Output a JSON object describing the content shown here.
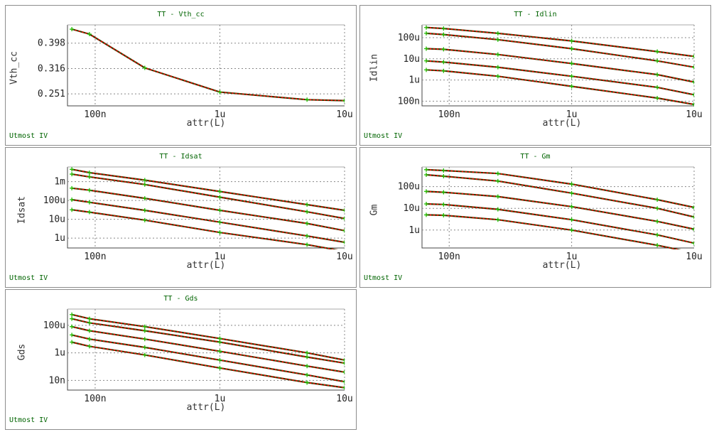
{
  "footer_label": "Utmost IV",
  "charts": [
    {
      "title": "TT - Vth_cc",
      "xlabel": "attr(L)",
      "ylabel": "Vth_cc",
      "chart_data": {
        "type": "line",
        "xscale": "log",
        "yscale": "log",
        "xlim": [
          6e-08,
          1e-05
        ],
        "ylim": [
          0.225,
          0.47
        ],
        "xticks": [
          "100n",
          "1u",
          "10u"
        ],
        "yticks": [
          "0.398",
          "0.316",
          "0.251"
        ],
        "grid": true,
        "series": [
          {
            "x": [
              6.5e-08,
              9e-08,
              2.5e-07,
              1e-06,
              5e-06,
              1e-05
            ],
            "y": [
              0.452,
              0.432,
              0.318,
              0.255,
              0.238,
              0.236
            ]
          }
        ]
      }
    },
    {
      "title": "TT - Idlin",
      "xlabel": "attr(L)",
      "ylabel": "Idlin",
      "chart_data": {
        "type": "line",
        "xscale": "log",
        "yscale": "log",
        "xlim": [
          6e-08,
          1e-05
        ],
        "ylim": [
          6e-08,
          0.0004
        ],
        "xticks": [
          "100n",
          "1u",
          "10u"
        ],
        "yticks": [
          "100u",
          "10u",
          "1u",
          "100n"
        ],
        "grid": true,
        "series": [
          {
            "x": [
              6.5e-08,
              9e-08,
              2.5e-07,
              1e-06,
              5e-06,
              1e-05
            ],
            "y": [
              0.0003,
              0.00027,
              0.00016,
              7e-05,
              2.2e-05,
              1.3e-05
            ]
          },
          {
            "x": [
              6.5e-08,
              9e-08,
              2.5e-07,
              1e-06,
              5e-06,
              1e-05
            ],
            "y": [
              0.00016,
              0.00014,
              8e-05,
              3e-05,
              8e-06,
              4e-06
            ]
          },
          {
            "x": [
              6.5e-08,
              9e-08,
              2.5e-07,
              1e-06,
              5e-06,
              1e-05
            ],
            "y": [
              3e-05,
              2.8e-05,
              1.6e-05,
              6e-06,
              1.8e-06,
              8e-07
            ]
          },
          {
            "x": [
              6.5e-08,
              9e-08,
              2.5e-07,
              1e-06,
              5e-06,
              1e-05
            ],
            "y": [
              8e-06,
              7e-06,
              4e-06,
              1.5e-06,
              4.5e-07,
              2e-07
            ]
          },
          {
            "x": [
              6.5e-08,
              9e-08,
              2.5e-07,
              1e-06,
              5e-06,
              1e-05
            ],
            "y": [
              3e-06,
              2.7e-06,
              1.5e-06,
              5e-07,
              1.4e-07,
              7e-08
            ]
          }
        ]
      }
    },
    {
      "title": "TT - Idsat",
      "xlabel": "attr(L)",
      "ylabel": "Idsat",
      "chart_data": {
        "type": "line",
        "xscale": "log",
        "yscale": "log",
        "xlim": [
          6e-08,
          1e-05
        ],
        "ylim": [
          3e-07,
          0.006
        ],
        "xticks": [
          "100n",
          "1u",
          "10u"
        ],
        "yticks": [
          "1m",
          "100u",
          "10u",
          "1u"
        ],
        "grid": true,
        "series": [
          {
            "x": [
              6.5e-08,
              9e-08,
              2.5e-07,
              1e-06,
              5e-06,
              1e-05
            ],
            "y": [
              0.0045,
              0.003,
              0.0012,
              0.0003,
              6e-05,
              3e-05
            ]
          },
          {
            "x": [
              6.5e-08,
              9e-08,
              2.5e-07,
              1e-06,
              5e-06,
              1e-05
            ],
            "y": [
              0.0025,
              0.0018,
              0.0007,
              0.00015,
              2.5e-05,
              1.1e-05
            ]
          },
          {
            "x": [
              6.5e-08,
              9e-08,
              2.5e-07,
              1e-06,
              5e-06,
              1e-05
            ],
            "y": [
              0.00045,
              0.00035,
              0.00013,
              3e-05,
              6e-06,
              2.5e-06
            ]
          },
          {
            "x": [
              6.5e-08,
              9e-08,
              2.5e-07,
              1e-06,
              5e-06,
              1e-05
            ],
            "y": [
              0.00011,
              8e-05,
              3e-05,
              7e-06,
              1.3e-06,
              6e-07
            ]
          },
          {
            "x": [
              6.5e-08,
              9e-08,
              2.5e-07,
              1e-06,
              5e-06,
              1e-05
            ],
            "y": [
              3.2e-05,
              2.4e-05,
              9e-06,
              2e-06,
              4.5e-07,
              2e-07
            ]
          }
        ]
      }
    },
    {
      "title": "TT - Gm",
      "xlabel": "attr(L)",
      "ylabel": "Gm",
      "chart_data": {
        "type": "line",
        "xscale": "log",
        "yscale": "log",
        "xlim": [
          6e-08,
          1e-05
        ],
        "ylim": [
          1.5e-07,
          0.0008
        ],
        "xticks": [
          "100n",
          "1u",
          "10u"
        ],
        "yticks": [
          "100u",
          "10u",
          "1u"
        ],
        "grid": true,
        "series": [
          {
            "x": [
              6.5e-08,
              9e-08,
              2.5e-07,
              1e-06,
              5e-06,
              1e-05
            ],
            "y": [
              0.0006,
              0.00055,
              0.0004,
              0.00013,
              2.5e-05,
              1.1e-05
            ]
          },
          {
            "x": [
              6.5e-08,
              9e-08,
              2.5e-07,
              1e-06,
              5e-06,
              1e-05
            ],
            "y": [
              0.00035,
              0.0003,
              0.00018,
              5e-05,
              1e-05,
              4e-06
            ]
          },
          {
            "x": [
              6.5e-08,
              9e-08,
              2.5e-07,
              1e-06,
              5e-06,
              1e-05
            ],
            "y": [
              6e-05,
              5.5e-05,
              3.5e-05,
              1.2e-05,
              2.5e-06,
              1.1e-06
            ]
          },
          {
            "x": [
              6.5e-08,
              9e-08,
              2.5e-07,
              1e-06,
              5e-06,
              1e-05
            ],
            "y": [
              1.6e-05,
              1.5e-05,
              9e-06,
              3e-06,
              6e-07,
              2.5e-07
            ]
          },
          {
            "x": [
              6.5e-08,
              9e-08,
              2.5e-07,
              1e-06,
              5e-06,
              1e-05
            ],
            "y": [
              5e-06,
              4.8e-06,
              3e-06,
              1e-06,
              2e-07,
              9e-08
            ]
          }
        ]
      }
    },
    {
      "title": "TT - Gds",
      "xlabel": "attr(L)",
      "ylabel": "Gds",
      "chart_data": {
        "type": "line",
        "xscale": "log",
        "yscale": "log",
        "xlim": [
          6e-08,
          1e-05
        ],
        "ylim": [
          2e-09,
          0.0015
        ],
        "xticks": [
          "100n",
          "1u",
          "10u"
        ],
        "yticks": [
          "100u",
          "1u",
          "10n"
        ],
        "grid": true,
        "series": [
          {
            "x": [
              6.5e-08,
              9e-08,
              2.5e-07,
              1e-06,
              5e-06,
              1e-05
            ],
            "y": [
              0.0006,
              0.0003,
              8e-05,
              1.1e-05,
              1e-06,
              3e-07
            ]
          },
          {
            "x": [
              6.5e-08,
              9e-08,
              2.5e-07,
              1e-06,
              5e-06,
              1e-05
            ],
            "y": [
              0.0003,
              0.00015,
              4e-05,
              6e-06,
              5e-07,
              1.8e-07
            ]
          },
          {
            "x": [
              6.5e-08,
              9e-08,
              2.5e-07,
              1e-06,
              5e-06,
              1e-05
            ],
            "y": [
              8e-05,
              4e-05,
              1e-05,
              1.3e-06,
              1.1e-07,
              4e-08
            ]
          },
          {
            "x": [
              6.5e-08,
              9e-08,
              2.5e-07,
              1e-06,
              5e-06,
              1e-05
            ],
            "y": [
              2e-05,
              1e-05,
              2.5e-06,
              3e-07,
              2.5e-08,
              8e-09
            ]
          },
          {
            "x": [
              6.5e-08,
              9e-08,
              2.5e-07,
              1e-06,
              5e-06,
              1e-05
            ],
            "y": [
              6e-06,
              3e-06,
              7e-07,
              8e-08,
              7e-09,
              3e-09
            ]
          }
        ]
      }
    }
  ],
  "colors": {
    "line_dark": "#3a3a00",
    "line_red": "#ff0000",
    "marker_green": "#1fbf00",
    "footer": "#006400",
    "grid": "#888888"
  }
}
